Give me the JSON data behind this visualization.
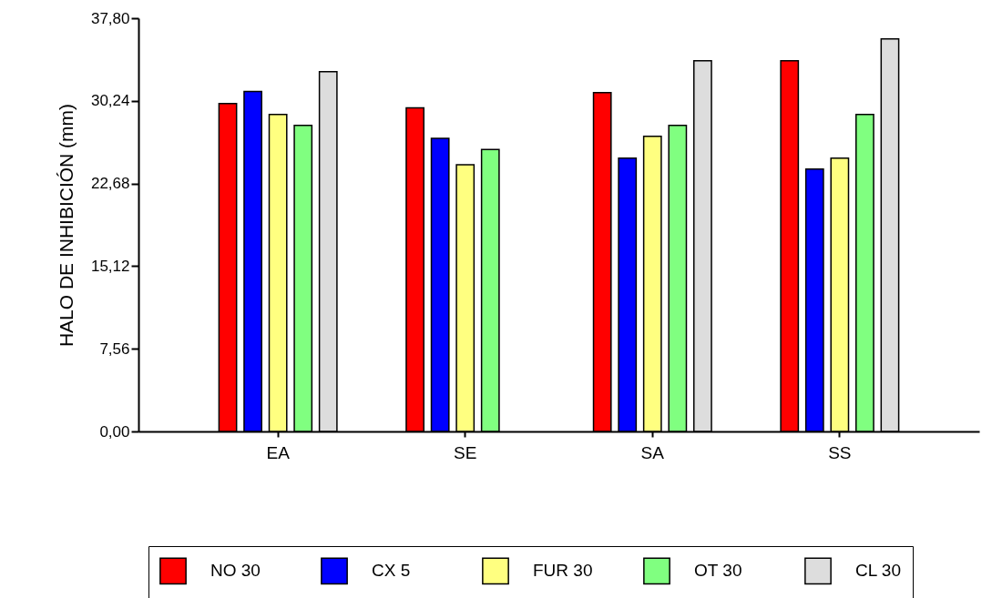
{
  "chart_data": {
    "type": "bar",
    "ylabel": "HALO DE INHIBICIÓN (mm)",
    "categories": [
      "EA",
      "SE",
      "SA",
      "SS"
    ],
    "series": [
      {
        "name": "NO 30",
        "color": "#ff0000",
        "values": [
          30.0,
          29.6,
          31.0,
          33.9
        ]
      },
      {
        "name": "CX 5",
        "color": "#0000ff",
        "values": [
          31.1,
          26.8,
          25.0,
          24.0
        ]
      },
      {
        "name": "FUR 30",
        "color": "#ffff80",
        "values": [
          29.0,
          24.4,
          27.0,
          25.0
        ]
      },
      {
        "name": "OT 30",
        "color": "#80ff80",
        "values": [
          28.0,
          25.8,
          28.0,
          29.0
        ]
      },
      {
        "name": "CL 30",
        "color": "#dddddd",
        "values": [
          32.9,
          null,
          33.9,
          35.9
        ]
      }
    ],
    "ylim": [
      0,
      37.8
    ],
    "yticks": [
      {
        "value": 0,
        "label": "0,00"
      },
      {
        "value": 7.56,
        "label": "7,56"
      },
      {
        "value": 15.12,
        "label": "15,12"
      },
      {
        "value": 22.68,
        "label": "22,68"
      },
      {
        "value": 30.24,
        "label": "30,24"
      },
      {
        "value": 37.8,
        "label": "37,80"
      }
    ],
    "grid": false,
    "legend": "bottom"
  }
}
